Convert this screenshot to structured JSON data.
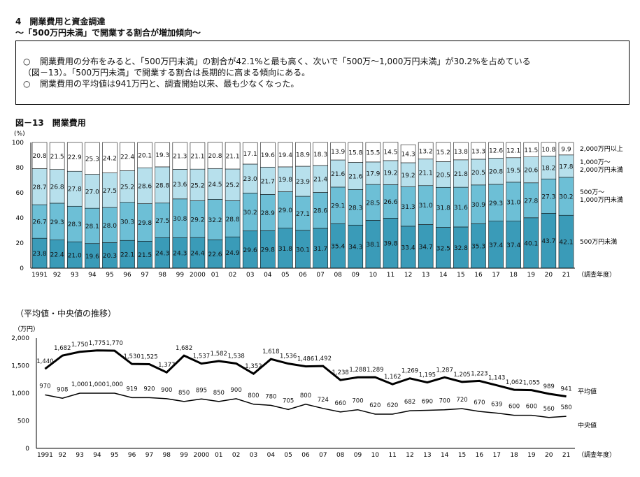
{
  "header": {
    "section_title": "4　開業費用と資金調達",
    "subtitle": "～「500万円未満」で開業する割合が増加傾向～"
  },
  "summary": {
    "bullet": "○",
    "line1": "開業費用の分布をみると、「500万円未満」の割合が42.1%と最も高く、次いで「500万～1,000万円未満」が30.2%を占めている",
    "line2": "（図－13）。「500万円未満」で開業する割合は長期的に高まる傾向にある。",
    "line3": "開業費用の平均値は941万円と、調査開始以来、最も少なくなった。"
  },
  "figure_title": "図－13　開業費用",
  "sub_title": "（平均値・中央値の推移）",
  "chart_data": [
    {
      "type": "bar",
      "stacked": true,
      "percent": true,
      "ylabel": "(%)",
      "ylim": [
        0,
        100
      ],
      "yticks": [
        0,
        20,
        40,
        60,
        80,
        100
      ],
      "xunit": "（調査年度）",
      "categories": [
        "1991",
        "92",
        "93",
        "94",
        "95",
        "96",
        "97",
        "98",
        "99",
        "2000",
        "01",
        "02",
        "03",
        "04",
        "05",
        "06",
        "07",
        "08",
        "09",
        "10",
        "11",
        "12",
        "13",
        "14",
        "15",
        "16",
        "17",
        "18",
        "19",
        "20",
        "21"
      ],
      "series": [
        {
          "name": "500万円未満",
          "color": "#3a9bb8",
          "values": [
            23.8,
            22.4,
            21.0,
            19.6,
            20.3,
            22.1,
            21.5,
            24.3,
            24.3,
            24.4,
            22.6,
            24.9,
            29.6,
            29.8,
            31.8,
            30.1,
            31.7,
            35.4,
            34.3,
            38.1,
            39.8,
            33.4,
            34.7,
            32.5,
            32.8,
            35.3,
            37.4,
            37.4,
            40.1,
            43.7,
            42.1
          ]
        },
        {
          "name": "500万～1,000万円未満",
          "color": "#6dbfd6",
          "values": [
            26.7,
            29.3,
            28.3,
            28.1,
            28.0,
            30.3,
            29.8,
            27.5,
            30.8,
            29.2,
            32.2,
            28.8,
            30.2,
            28.9,
            29.0,
            27.1,
            28.6,
            29.1,
            28.3,
            28.5,
            26.6,
            31.3,
            31.0,
            31.8,
            31.6,
            30.9,
            29.3,
            31.0,
            27.8,
            27.3,
            30.2
          ]
        },
        {
          "name": "1,000万～2,000万円未満",
          "color": "#b7e0ec",
          "values": [
            28.7,
            26.8,
            27.8,
            27.0,
            27.5,
            25.2,
            28.6,
            28.8,
            23.6,
            25.2,
            24.5,
            25.2,
            23.0,
            21.7,
            19.8,
            23.9,
            21.4,
            21.6,
            21.6,
            17.9,
            19.2,
            19.2,
            21.1,
            20.5,
            21.8,
            20.5,
            20.8,
            19.5,
            20.6,
            18.2,
            17.8
          ]
        },
        {
          "name": "2,000万円以上",
          "color": "#ffffff",
          "values": [
            20.8,
            21.5,
            22.9,
            25.3,
            24.2,
            22.4,
            20.1,
            19.3,
            21.3,
            21.1,
            20.8,
            21.1,
            17.1,
            19.6,
            19.4,
            18.9,
            18.3,
            13.9,
            15.8,
            15.5,
            14.5,
            14.3,
            13.2,
            15.2,
            13.8,
            13.3,
            12.6,
            12.1,
            11.5,
            10.8,
            9.9
          ]
        }
      ]
    },
    {
      "type": "line",
      "ylabel": "（万円）",
      "ylim": [
        0,
        2000
      ],
      "yticks": [
        0,
        500,
        1000,
        1500,
        2000
      ],
      "ytick_labels": [
        "0",
        "500",
        "1,000",
        "1,500",
        "2,000"
      ],
      "xunit": "（調査年度）",
      "categories": [
        "1991",
        "92",
        "93",
        "94",
        "95",
        "96",
        "97",
        "98",
        "99",
        "2000",
        "01",
        "02",
        "03",
        "04",
        "05",
        "06",
        "07",
        "08",
        "09",
        "10",
        "11",
        "12",
        "13",
        "14",
        "15",
        "16",
        "17",
        "18",
        "19",
        "20",
        "21"
      ],
      "series": [
        {
          "name": "平均値",
          "values": [
            1440,
            1682,
            1750,
            1775,
            1770,
            1530,
            1525,
            1377,
            1682,
            1537,
            1582,
            1538,
            1352,
            1618,
            1536,
            1486,
            1492,
            1238,
            1288,
            1289,
            1162,
            1269,
            1195,
            1287,
            1205,
            1223,
            1143,
            1062,
            1055,
            989,
            941
          ],
          "labels": [
            "1,440",
            "1,682",
            "1,750",
            "1,775",
            "1,770",
            "1,530",
            "1,525",
            "1,377",
            "1,682",
            "1,537",
            "1,582",
            "1,538",
            "1,352",
            "1,618",
            "1,536",
            "1,486",
            "1,492",
            "1,238",
            "1,288",
            "1,289",
            "1,162",
            "1,269",
            "1,195",
            "1,287",
            "1,205",
            "1,223",
            "1,143",
            "1,062",
            "1,055",
            "989",
            "941"
          ]
        },
        {
          "name": "中央値",
          "values": [
            970,
            908,
            1000,
            1000,
            1000,
            919,
            920,
            900,
            850,
            895,
            850,
            900,
            800,
            780,
            705,
            800,
            724,
            660,
            700,
            620,
            620,
            682,
            690,
            700,
            720,
            670,
            639,
            600,
            600,
            560,
            580
          ],
          "labels": [
            "970",
            "908",
            "1,000",
            "1,000",
            "1,000",
            "919",
            "920",
            "900",
            "850",
            "895",
            "850",
            "900",
            "800",
            "780",
            "705",
            "800",
            "724",
            "660",
            "700",
            "620",
            "620",
            "682",
            "690",
            "700",
            "720",
            "670",
            "639",
            "600",
            "600",
            "560",
            "580"
          ]
        }
      ]
    }
  ]
}
